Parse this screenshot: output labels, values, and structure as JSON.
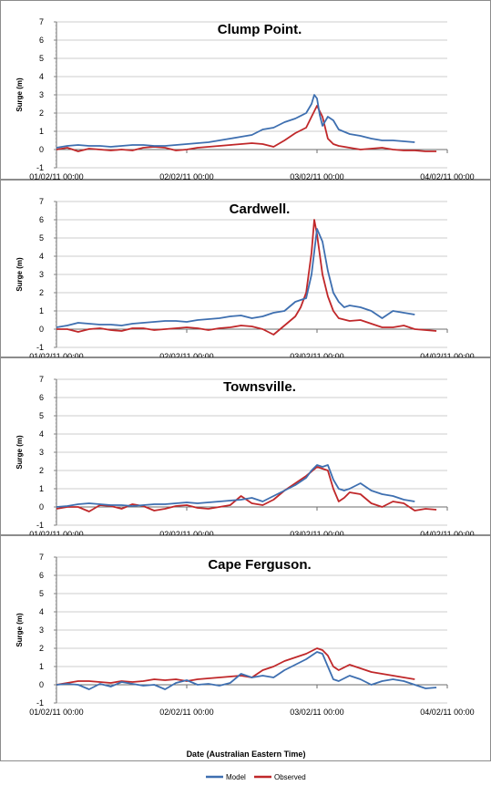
{
  "figure": {
    "x_axis_label": "Date (Australian Eastern Time)",
    "legend": [
      {
        "name": "Model",
        "color": "#3e6fb0"
      },
      {
        "name": "Observed",
        "color": "#c0282a"
      }
    ]
  },
  "chart_data": [
    {
      "type": "line",
      "title": "Clump Point.",
      "ylabel": "Surge (m)",
      "xlabel": "",
      "ylim": [
        -1,
        7
      ],
      "yticks": [
        "7",
        "6",
        "5",
        "4",
        "3",
        "2",
        "1",
        "0",
        "-1"
      ],
      "xticks": [
        "01/02/11 00:00",
        "02/02/11 00:00",
        "03/02/11 00:00",
        "04/02/11 00:00"
      ],
      "xlim": [
        0,
        72
      ],
      "grid": true,
      "series": [
        {
          "name": "Model",
          "color": "#3e6fb0",
          "x": [
            0,
            2,
            4,
            6,
            8,
            10,
            12,
            14,
            16,
            18,
            20,
            22,
            24,
            26,
            28,
            30,
            32,
            34,
            36,
            38,
            40,
            42,
            44,
            46,
            47,
            47.5,
            48,
            48.5,
            49,
            50,
            51,
            52,
            54,
            56,
            58,
            60,
            62,
            64,
            66
          ],
          "values": [
            0.1,
            0.2,
            0.25,
            0.2,
            0.2,
            0.15,
            0.2,
            0.25,
            0.25,
            0.2,
            0.2,
            0.25,
            0.3,
            0.35,
            0.4,
            0.5,
            0.6,
            0.7,
            0.8,
            1.1,
            1.2,
            1.5,
            1.7,
            2.0,
            2.5,
            3.0,
            2.8,
            1.9,
            1.3,
            1.8,
            1.6,
            1.1,
            0.85,
            0.75,
            0.6,
            0.5,
            0.5,
            0.45,
            0.4
          ]
        },
        {
          "name": "Observed",
          "color": "#c0282a",
          "x": [
            0,
            2,
            4,
            6,
            8,
            10,
            12,
            14,
            16,
            18,
            20,
            22,
            24,
            26,
            28,
            30,
            32,
            34,
            36,
            38,
            40,
            42,
            44,
            46,
            47,
            48,
            49,
            50,
            51,
            52,
            54,
            56,
            58,
            60,
            62,
            64,
            66,
            68,
            70
          ],
          "values": [
            0.0,
            0.1,
            -0.1,
            0.05,
            0.0,
            -0.05,
            0.0,
            -0.05,
            0.1,
            0.15,
            0.1,
            -0.05,
            0.0,
            0.1,
            0.15,
            0.2,
            0.25,
            0.3,
            0.35,
            0.3,
            0.15,
            0.5,
            0.9,
            1.2,
            1.8,
            2.4,
            1.8,
            0.6,
            0.3,
            0.2,
            0.1,
            0.0,
            0.05,
            0.1,
            0.0,
            -0.05,
            -0.05,
            -0.1,
            -0.1
          ]
        }
      ]
    },
    {
      "type": "line",
      "title": "Cardwell.",
      "ylabel": "Surge (m)",
      "xlabel": "",
      "ylim": [
        -1,
        7
      ],
      "yticks": [
        "7",
        "6",
        "5",
        "4",
        "3",
        "2",
        "1",
        "0",
        "-1"
      ],
      "xticks": [
        "01/02/11 00:00",
        "02/02/11 00:00",
        "03/02/11 00:00",
        "04/02/11 00:00"
      ],
      "xlim": [
        0,
        72
      ],
      "grid": true,
      "series": [
        {
          "name": "Model",
          "color": "#3e6fb0",
          "x": [
            0,
            2,
            4,
            6,
            8,
            10,
            12,
            14,
            16,
            18,
            20,
            22,
            24,
            26,
            28,
            30,
            32,
            34,
            36,
            38,
            40,
            42,
            44,
            45,
            46,
            47,
            48,
            49,
            50,
            51,
            52,
            53,
            54,
            56,
            58,
            60,
            62,
            64,
            66
          ],
          "values": [
            0.1,
            0.2,
            0.35,
            0.3,
            0.25,
            0.25,
            0.2,
            0.3,
            0.35,
            0.4,
            0.45,
            0.45,
            0.4,
            0.5,
            0.55,
            0.6,
            0.7,
            0.75,
            0.6,
            0.7,
            0.9,
            1.0,
            1.5,
            1.6,
            1.7,
            3.0,
            5.5,
            4.8,
            3.2,
            2.0,
            1.5,
            1.2,
            1.3,
            1.2,
            1.0,
            0.6,
            1.0,
            0.9,
            0.8
          ]
        },
        {
          "name": "Observed",
          "color": "#c0282a",
          "x": [
            0,
            2,
            4,
            6,
            8,
            10,
            12,
            14,
            16,
            18,
            20,
            22,
            24,
            26,
            28,
            30,
            32,
            34,
            36,
            38,
            40,
            42,
            44,
            45,
            46,
            47,
            47.5,
            48,
            49,
            50,
            51,
            52,
            54,
            56,
            58,
            60,
            62,
            64,
            66,
            68,
            70
          ],
          "values": [
            0.0,
            0.0,
            -0.15,
            0.0,
            0.05,
            -0.05,
            -0.1,
            0.05,
            0.05,
            -0.05,
            0.0,
            0.05,
            0.1,
            0.05,
            -0.05,
            0.05,
            0.1,
            0.2,
            0.15,
            0.0,
            -0.3,
            0.2,
            0.7,
            1.2,
            2.0,
            4.2,
            6.0,
            5.2,
            3.0,
            1.8,
            1.0,
            0.6,
            0.45,
            0.5,
            0.3,
            0.1,
            0.1,
            0.2,
            0.0,
            -0.05,
            -0.1
          ]
        }
      ]
    },
    {
      "type": "line",
      "title": "Townsville.",
      "ylabel": "Surge (m)",
      "xlabel": "",
      "ylim": [
        -1,
        7
      ],
      "yticks": [
        "7",
        "6",
        "5",
        "4",
        "3",
        "2",
        "1",
        "0",
        "-1"
      ],
      "xticks": [
        "01/02/11 00:00",
        "02/02/11 00:00",
        "03/02/11 00:00",
        "04/02/11 00:00"
      ],
      "xlim": [
        0,
        72
      ],
      "grid": true,
      "series": [
        {
          "name": "Model",
          "color": "#3e6fb0",
          "x": [
            0,
            2,
            4,
            6,
            8,
            10,
            12,
            14,
            16,
            18,
            20,
            22,
            24,
            26,
            28,
            30,
            32,
            34,
            36,
            38,
            40,
            42,
            44,
            46,
            47,
            48,
            49,
            50,
            51,
            52,
            53,
            54,
            56,
            58,
            60,
            62,
            64,
            66
          ],
          "values": [
            0.0,
            0.05,
            0.15,
            0.2,
            0.15,
            0.1,
            0.1,
            0.05,
            0.1,
            0.15,
            0.15,
            0.2,
            0.25,
            0.2,
            0.25,
            0.3,
            0.35,
            0.4,
            0.5,
            0.3,
            0.6,
            0.9,
            1.2,
            1.6,
            2.0,
            2.3,
            2.2,
            2.3,
            1.5,
            1.0,
            0.9,
            1.0,
            1.3,
            0.9,
            0.7,
            0.6,
            0.4,
            0.3
          ]
        },
        {
          "name": "Observed",
          "color": "#c0282a",
          "x": [
            0,
            2,
            4,
            6,
            8,
            10,
            12,
            14,
            16,
            18,
            20,
            22,
            24,
            26,
            28,
            30,
            32,
            34,
            36,
            38,
            40,
            42,
            44,
            46,
            48,
            50,
            51,
            52,
            53,
            54,
            56,
            58,
            60,
            62,
            64,
            66,
            68,
            70
          ],
          "values": [
            -0.1,
            0.0,
            0.0,
            -0.25,
            0.1,
            0.05,
            -0.1,
            0.15,
            0.05,
            -0.2,
            -0.1,
            0.05,
            0.1,
            -0.05,
            -0.1,
            0.0,
            0.1,
            0.6,
            0.2,
            0.1,
            0.4,
            0.9,
            1.3,
            1.7,
            2.2,
            2.0,
            1.0,
            0.3,
            0.5,
            0.8,
            0.7,
            0.2,
            0.0,
            0.3,
            0.2,
            -0.2,
            -0.1,
            -0.15
          ]
        }
      ]
    },
    {
      "type": "line",
      "title": "Cape Ferguson.",
      "ylabel": "Surge (m)",
      "xlabel": "Date (Australian Eastern Time)",
      "ylim": [
        -1,
        7
      ],
      "yticks": [
        "7",
        "6",
        "5",
        "4",
        "3",
        "2",
        "1",
        "0",
        "-1"
      ],
      "xticks": [
        "01/02/11 00:00",
        "02/02/11 00:00",
        "03/02/11 00:00",
        "04/02/11 00:00"
      ],
      "xlim": [
        0,
        72
      ],
      "grid": true,
      "series": [
        {
          "name": "Model",
          "color": "#3e6fb0",
          "x": [
            0,
            2,
            4,
            6,
            8,
            10,
            12,
            14,
            16,
            18,
            20,
            22,
            24,
            26,
            28,
            30,
            32,
            34,
            36,
            38,
            40,
            42,
            44,
            46,
            48,
            49,
            50,
            51,
            52,
            54,
            56,
            58,
            60,
            62,
            64,
            66,
            68,
            70
          ],
          "values": [
            0.0,
            0.05,
            0.0,
            -0.25,
            0.05,
            -0.1,
            0.15,
            0.05,
            -0.05,
            0.0,
            -0.25,
            0.1,
            0.25,
            0.0,
            0.05,
            -0.05,
            0.1,
            0.6,
            0.4,
            0.5,
            0.4,
            0.8,
            1.1,
            1.4,
            1.8,
            1.7,
            1.0,
            0.3,
            0.2,
            0.5,
            0.3,
            0.0,
            0.2,
            0.3,
            0.2,
            0.0,
            -0.2,
            -0.15
          ]
        },
        {
          "name": "Observed",
          "color": "#c0282a",
          "x": [
            0,
            2,
            4,
            6,
            8,
            10,
            12,
            14,
            16,
            18,
            20,
            22,
            24,
            26,
            28,
            30,
            32,
            34,
            36,
            38,
            40,
            42,
            44,
            46,
            48,
            49,
            50,
            51,
            52,
            54,
            56,
            58,
            60,
            62,
            64,
            66
          ],
          "values": [
            0.0,
            0.1,
            0.2,
            0.2,
            0.15,
            0.1,
            0.2,
            0.15,
            0.2,
            0.3,
            0.25,
            0.3,
            0.2,
            0.3,
            0.35,
            0.4,
            0.45,
            0.5,
            0.4,
            0.8,
            1.0,
            1.3,
            1.5,
            1.7,
            2.0,
            1.9,
            1.6,
            1.0,
            0.8,
            1.1,
            0.9,
            0.7,
            0.6,
            0.5,
            0.4,
            0.3
          ]
        }
      ]
    }
  ]
}
